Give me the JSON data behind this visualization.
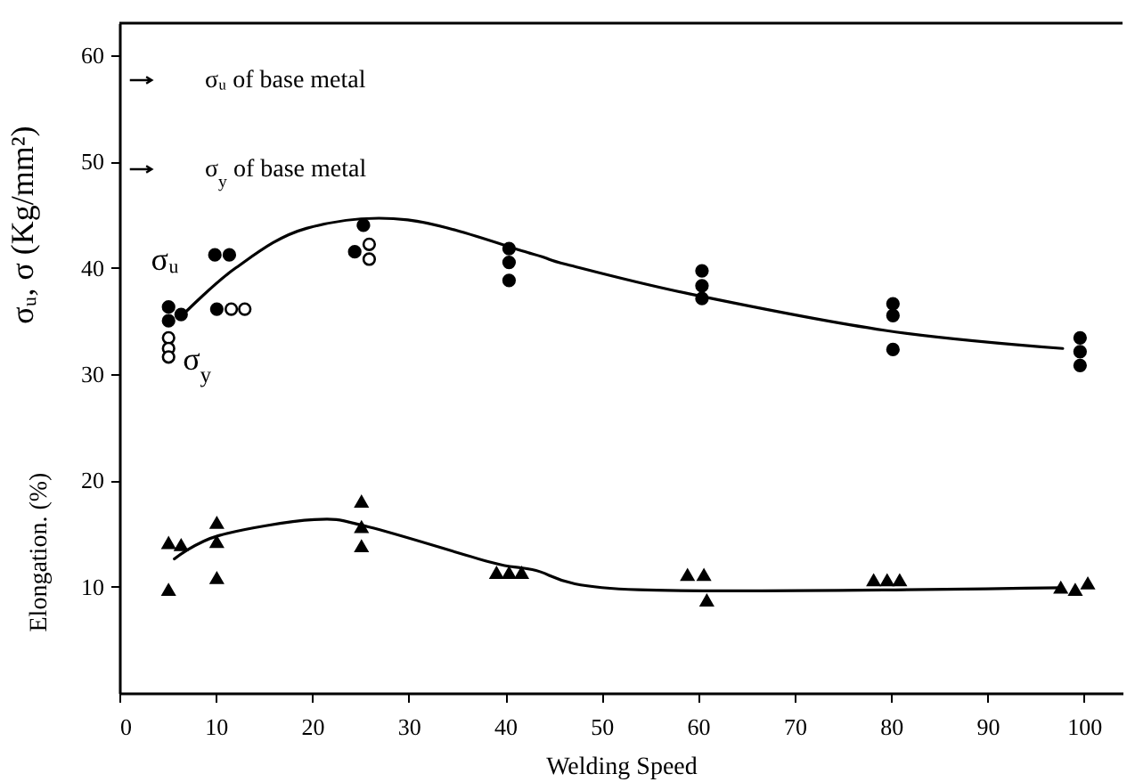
{
  "chart_data": {
    "type": "scatter",
    "xlabel": "Welding Speed",
    "ylabel": "σᵤ, σ (Kg/mm²)",
    "xlim": [
      0,
      104
    ],
    "xticks": [
      0,
      10,
      20,
      30,
      40,
      50,
      60,
      70,
      80,
      90,
      100
    ],
    "ylim": [
      0,
      63
    ],
    "yticks": [
      10,
      20,
      30,
      40,
      50,
      60
    ],
    "annotations": [
      "σᵤ of base metal",
      "σ$_{y}$ of base metal",
      "Elongation. (%)"
    ],
    "series": [
      {
        "name": "σᵤ",
        "marker": "circle",
        "color": "#000000",
        "x": [
          5.1,
          5.1,
          6.4,
          9.9,
          11.4,
          10.1,
          25.3,
          24.4,
          40.4,
          40.4,
          40.4,
          60.4,
          60.4,
          60.4,
          80.2,
          80.2,
          80.2,
          99.6,
          99.6,
          99.6
        ],
        "values": [
          36.3,
          35.0,
          35.6,
          41.2,
          41.2,
          36.1,
          44.0,
          41.5,
          41.8,
          40.5,
          38.8,
          39.7,
          38.3,
          37.1,
          36.6,
          35.5,
          32.3,
          33.4,
          32.1,
          30.8
        ]
      },
      {
        "name": "σ$_{y}$",
        "marker": "circle",
        "color": "#ffffff",
        "x": [
          5.1,
          5.1,
          5.1,
          11.6,
          13.0,
          25.9,
          25.9
        ],
        "values": [
          33.4,
          32.4,
          31.6,
          36.1,
          36.1,
          42.2,
          40.8
        ]
      },
      {
        "marker": "triangle",
        "color": "#000000",
        "x": [
          5.1,
          6.4,
          5.1,
          10.1,
          10.1,
          10.1,
          25.1,
          25.1,
          25.1,
          39.1,
          40.4,
          41.7,
          58.9,
          60.6,
          60.9,
          78.2,
          79.6,
          80.9,
          97.6,
          99.1,
          100.4
        ],
        "values": [
          14.1,
          13.9,
          9.7,
          16.0,
          14.2,
          10.8,
          18.0,
          15.6,
          13.8,
          11.3,
          11.3,
          11.3,
          11.1,
          11.1,
          8.7,
          10.6,
          10.6,
          10.6,
          9.9,
          9.7,
          10.3
        ]
      },
      {
        "type": "line",
        "marker": "none",
        "color": "#000000",
        "x": [
          6.5,
          12.1,
          19.4,
          29.9,
          42.8,
          46.4,
          59.3,
          79.4,
          97.8
        ],
        "values": [
          35.5,
          40.0,
          43.7,
          44.5,
          41.3,
          40.3,
          37.5,
          34.1,
          32.4
        ]
      },
      {
        "type": "line",
        "marker": "none",
        "color": "#000000",
        "x": [
          5.7,
          10.3,
          20.2,
          25.9,
          38.5,
          42.8,
          53.8,
          97.8
        ],
        "values": [
          12.6,
          14.8,
          16.3,
          15.6,
          12.3,
          11.6,
          9.7,
          9.9
        ]
      }
    ]
  }
}
